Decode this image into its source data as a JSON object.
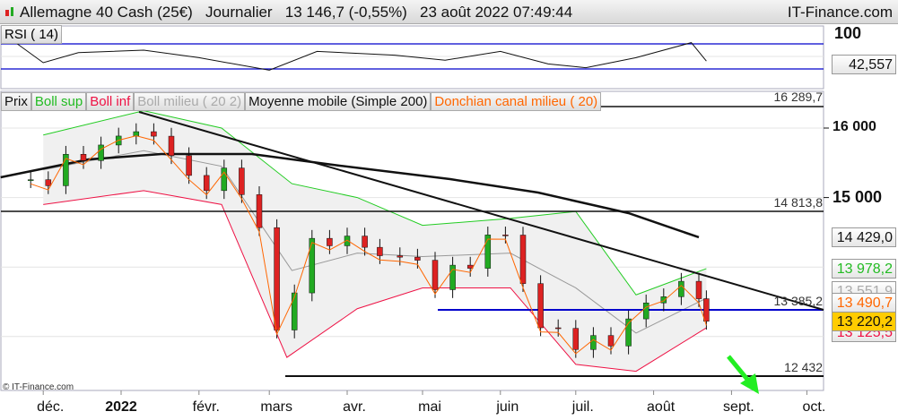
{
  "header": {
    "title": "Allemagne 40 Cash (25€)   Journalier   13 146,7 (-0,55%)   23 août 2022 07:49:44",
    "site": "IT-Finance.com"
  },
  "rsi": {
    "label": "RSI ( 14)",
    "axis_top": "100",
    "value": "42,557"
  },
  "legend": {
    "prix": "Prix",
    "boll_sup": "Boll sup",
    "boll_inf": "Boll inf",
    "boll_mid": "Boll milieu ( 20 2)",
    "ma": "Moyenne mobile (Simple 200)",
    "donchian": "Donchian canal milieu ( 20)"
  },
  "price_axis": {
    "t16000": "16 000",
    "t15000": "15 000"
  },
  "badges": {
    "ma": "14 429,0",
    "boll_sup": "13 978,2",
    "boll_mid": "13 551,9",
    "donchian": "13 490,7",
    "price": "13 220,2",
    "boll_inf": "13 125,5"
  },
  "levels": {
    "l1": "16 289,7",
    "l2": "14 813,8",
    "l3": "13 385,2",
    "l4": "12 432"
  },
  "copyright": "© IT-Finance.com",
  "colors": {
    "boll_sup": "#22cc22",
    "boll_inf": "#ee1144",
    "boll_mid": "#999999",
    "ma": "#111111",
    "donchian": "#ff6600",
    "support": "#0000cc",
    "arrow": "#22ee22",
    "price_badge": "#ffcc00"
  },
  "chart_data": {
    "type": "candlestick",
    "title": "Allemagne 40 Cash (25€) Journalier",
    "x_ticks": [
      "déc.",
      "2022",
      "févr.",
      "mars",
      "avr.",
      "mai",
      "juin",
      "juil.",
      "août",
      "sept.",
      "oct."
    ],
    "y_ticks": [
      15000,
      16000
    ],
    "close": [
      [
        "2021-11-26",
        15257
      ],
      [
        "2021-12-03",
        15170
      ],
      [
        "2021-12-10",
        15623
      ],
      [
        "2021-12-17",
        15532
      ],
      [
        "2021-12-24",
        15756
      ],
      [
        "2021-12-31",
        15885
      ],
      [
        "2022-01-07",
        15948
      ],
      [
        "2022-01-14",
        15883
      ],
      [
        "2022-01-21",
        15603
      ],
      [
        "2022-01-28",
        15318
      ],
      [
        "2022-02-04",
        15100
      ],
      [
        "2022-02-11",
        15425
      ],
      [
        "2022-02-18",
        15042
      ],
      [
        "2022-02-25",
        14567
      ],
      [
        "2022-03-04",
        13094
      ],
      [
        "2022-03-11",
        13628
      ],
      [
        "2022-03-18",
        14413
      ],
      [
        "2022-03-25",
        14306
      ],
      [
        "2022-04-01",
        14446
      ],
      [
        "2022-04-08",
        14284
      ],
      [
        "2022-04-14",
        14163
      ],
      [
        "2022-04-22",
        14142
      ],
      [
        "2022-04-29",
        14098
      ],
      [
        "2022-05-06",
        13674
      ],
      [
        "2022-05-13",
        14027
      ],
      [
        "2022-05-20",
        13982
      ],
      [
        "2022-05-27",
        14462
      ],
      [
        "2022-06-03",
        14460
      ],
      [
        "2022-06-10",
        13762
      ],
      [
        "2022-06-17",
        13126
      ],
      [
        "2022-06-24",
        13118
      ],
      [
        "2022-07-01",
        12813
      ],
      [
        "2022-07-08",
        13015
      ],
      [
        "2022-07-15",
        12864
      ],
      [
        "2022-07-22",
        13254
      ],
      [
        "2022-07-29",
        13484
      ],
      [
        "2022-08-05",
        13573
      ],
      [
        "2022-08-12",
        13795
      ],
      [
        "2022-08-19",
        13544
      ],
      [
        "2022-08-22",
        13220
      ]
    ],
    "ma200": [
      [
        "2021-11-14",
        15291
      ],
      [
        "2021-12-19",
        15549
      ],
      [
        "2022-01-17",
        15626
      ],
      [
        "2022-02-22",
        15626
      ],
      [
        "2022-03-29",
        15459
      ],
      [
        "2022-05-12",
        15265
      ],
      [
        "2022-06-16",
        15072
      ],
      [
        "2022-07-22",
        14776
      ],
      [
        "2022-08-19",
        14428
      ]
    ],
    "boll_sup": [
      [
        "2021-12-01",
        15900
      ],
      [
        "2022-01-10",
        16250
      ],
      [
        "2022-02-10",
        16000
      ],
      [
        "2022-03-10",
        15200
      ],
      [
        "2022-04-05",
        15000
      ],
      [
        "2022-05-01",
        14600
      ],
      [
        "2022-06-05",
        14700
      ],
      [
        "2022-07-01",
        14800
      ],
      [
        "2022-07-25",
        13600
      ],
      [
        "2022-08-22",
        13978
      ]
    ],
    "boll_inf": [
      [
        "2021-12-01",
        14900
      ],
      [
        "2022-01-10",
        15100
      ],
      [
        "2022-02-10",
        14900
      ],
      [
        "2022-03-08",
        12700
      ],
      [
        "2022-04-05",
        13400
      ],
      [
        "2022-05-01",
        13700
      ],
      [
        "2022-06-05",
        13700
      ],
      [
        "2022-07-01",
        12600
      ],
      [
        "2022-07-25",
        12500
      ],
      [
        "2022-08-22",
        13125
      ]
    ],
    "rsi": [
      [
        "2021-11-20",
        72
      ],
      [
        "2021-12-01",
        40
      ],
      [
        "2021-12-15",
        56
      ],
      [
        "2022-01-10",
        60
      ],
      [
        "2022-02-01",
        48
      ],
      [
        "2022-03-01",
        28
      ],
      [
        "2022-03-20",
        58
      ],
      [
        "2022-04-20",
        52
      ],
      [
        "2022-05-10",
        44
      ],
      [
        "2022-06-01",
        58
      ],
      [
        "2022-06-20",
        38
      ],
      [
        "2022-07-05",
        32
      ],
      [
        "2022-07-25",
        48
      ],
      [
        "2022-08-16",
        72
      ],
      [
        "2022-08-22",
        42.557
      ]
    ],
    "rsi_levels": [
      30,
      70
    ],
    "trendline": [
      [
        "2022-01-07",
        16420
      ],
      [
        "2022-10-01",
        13385
      ]
    ],
    "horizontal_levels": [
      16289.7,
      14813.8,
      13385.2,
      12432
    ]
  }
}
